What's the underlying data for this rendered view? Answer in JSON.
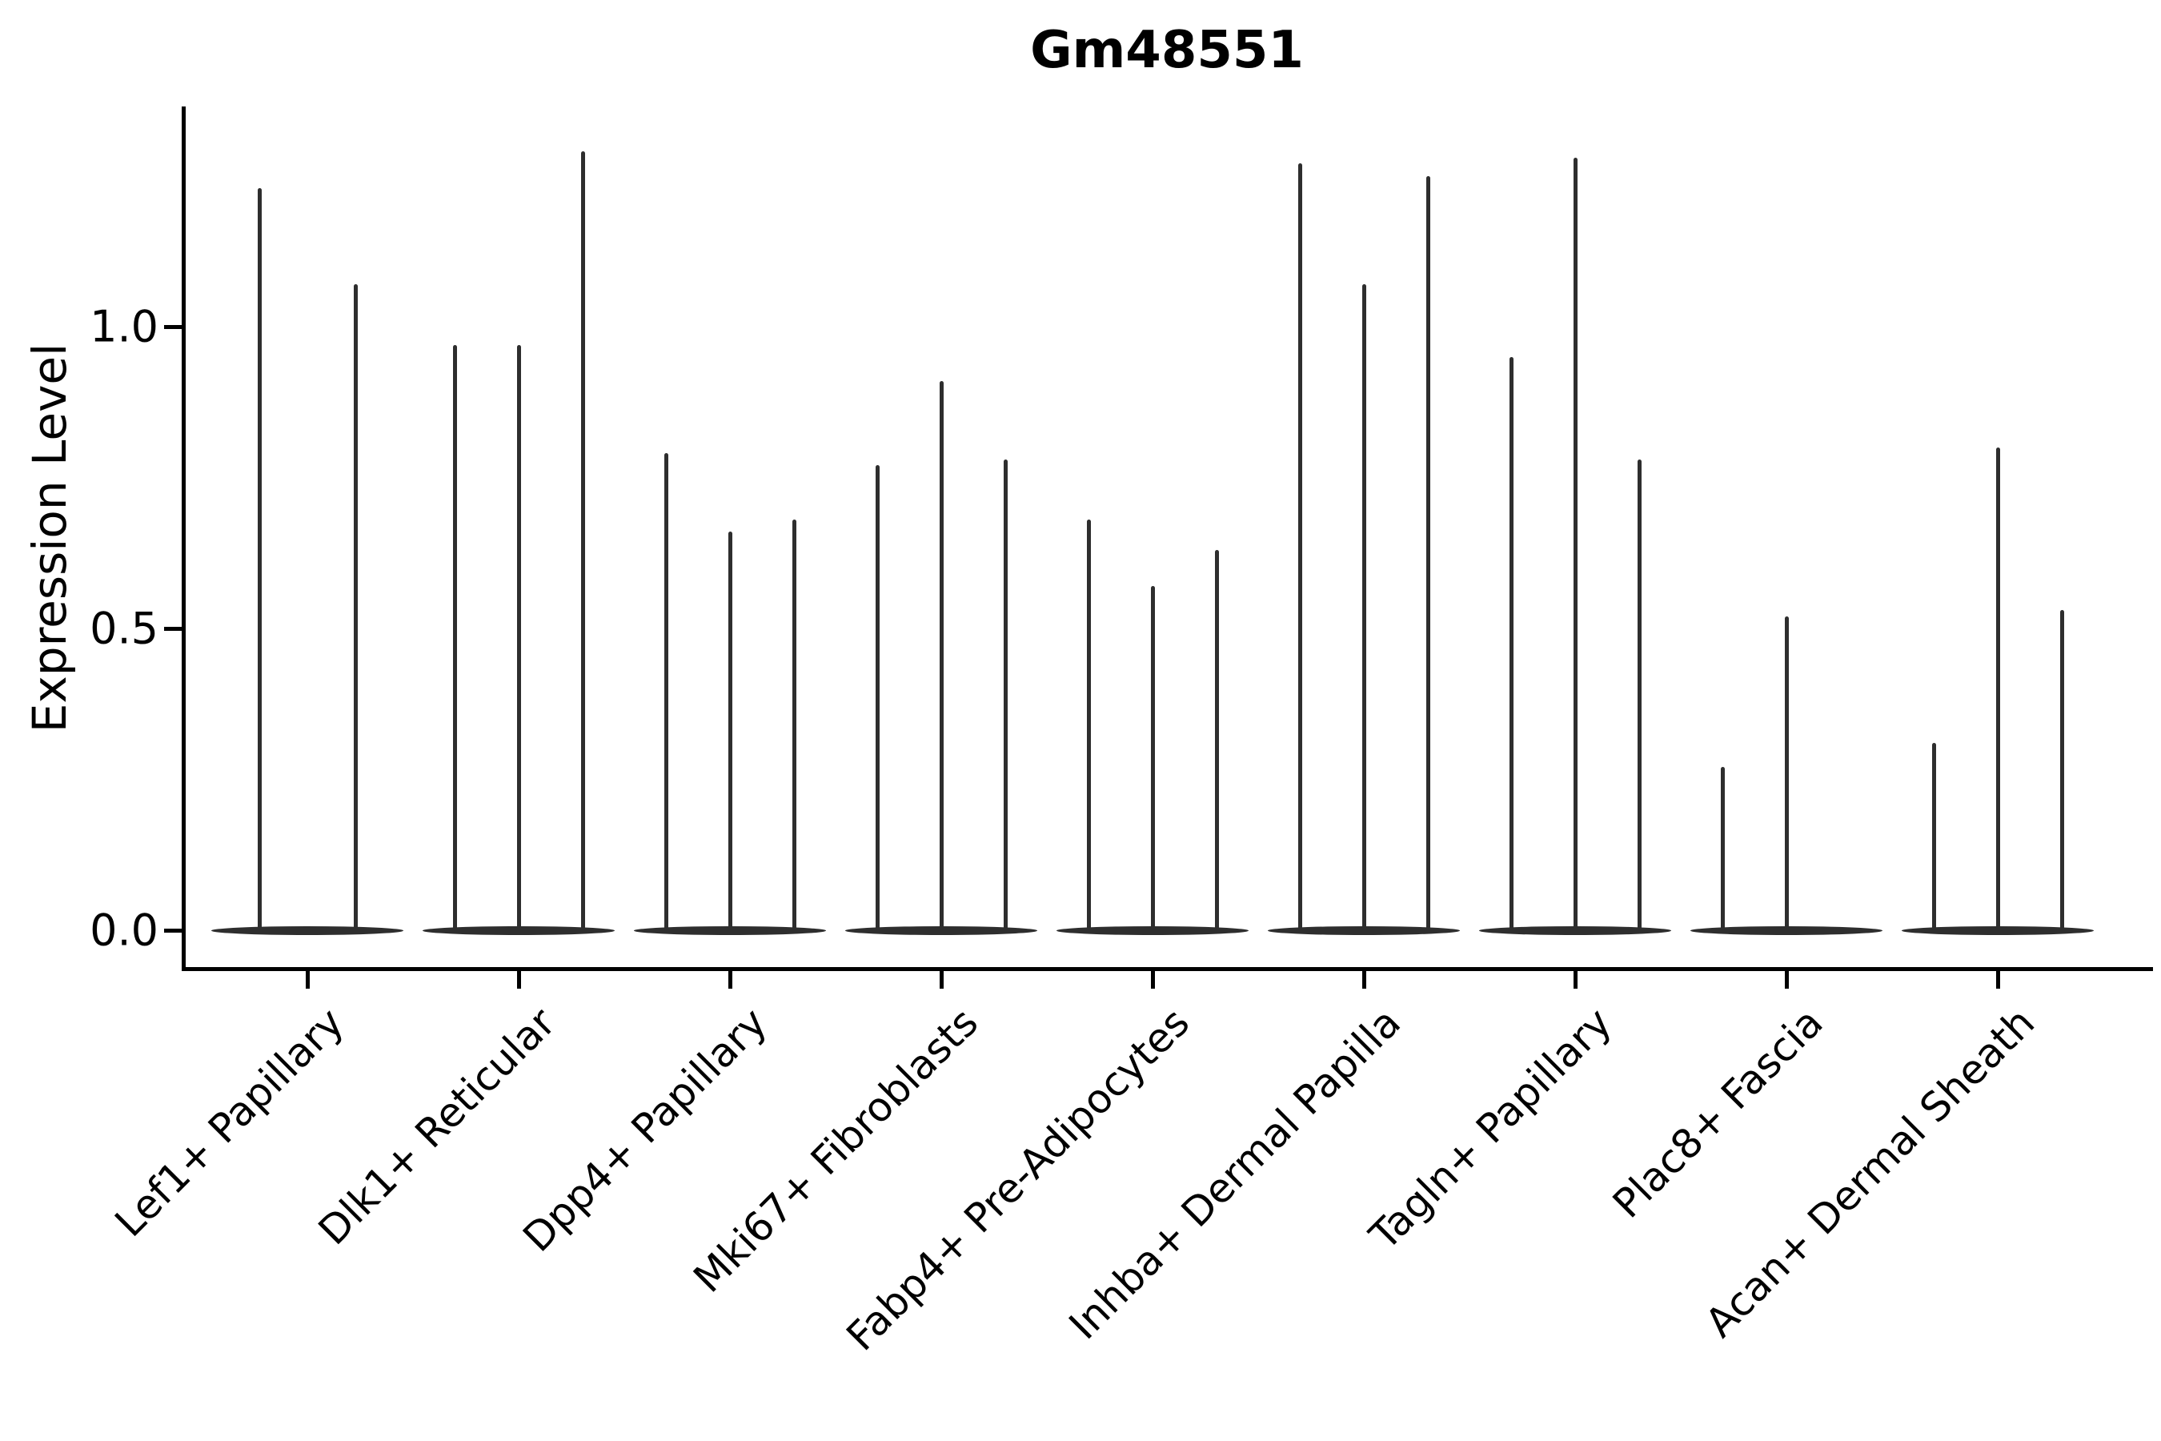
{
  "title": "Gm48551",
  "colors": {
    "background": "#ffffff",
    "violin": "#2e2e2e",
    "axis": "#000000",
    "text": "#000000"
  },
  "chart_data": {
    "type": "violin",
    "title": "Gm48551",
    "xlabel": "",
    "ylabel": "Expression Level",
    "ylim": [
      -0.06,
      1.36
    ],
    "grid": false,
    "legend": null,
    "y_ticks": [
      {
        "value": 0.0,
        "label": "0.0"
      },
      {
        "value": 0.5,
        "label": "0.5"
      },
      {
        "value": 1.0,
        "label": "1.0"
      }
    ],
    "categories": [
      "Lef1+ Papillary",
      "Dlk1+ Reticular",
      "Dpp4+ Papillary",
      "Mki67+ Fibroblasts",
      "Fabp4+ Pre-Adipocytes",
      "Inhba+ Dermal Papilla",
      "Tagln+ Papillary",
      "Plac8+ Fascia",
      "Acan+ Dermal Sheath"
    ],
    "groups": [
      {
        "label": "Lef1+ Papillary",
        "violin_peaks": [
          1.23,
          1.07
        ]
      },
      {
        "label": "Dlk1+ Reticular",
        "violin_peaks": [
          0.97,
          0.97,
          1.29
        ]
      },
      {
        "label": "Dpp4+ Papillary",
        "violin_peaks": [
          0.79,
          0.66,
          0.68
        ]
      },
      {
        "label": "Mki67+ Fibroblasts",
        "violin_peaks": [
          0.77,
          0.91,
          0.78
        ]
      },
      {
        "label": "Fabp4+ Pre-Adipocytes",
        "violin_peaks": [
          0.68,
          0.57,
          0.63
        ]
      },
      {
        "label": "Inhba+ Dermal Papilla",
        "violin_peaks": [
          1.27,
          1.07,
          1.25
        ]
      },
      {
        "label": "Tagln+ Papillary",
        "violin_peaks": [
          0.95,
          1.28,
          0.78
        ]
      },
      {
        "label": "Plac8+ Fascia",
        "violin_peaks": [
          0.27,
          0.52,
          0.0
        ]
      },
      {
        "label": "Acan+ Dermal Sheath",
        "violin_peaks": [
          0.31,
          0.8,
          0.53
        ]
      }
    ],
    "notes": "Each violin is a near-zero-width density: a wide flat base at expression 0 plus a thin stem rising to its maximum expression value."
  }
}
